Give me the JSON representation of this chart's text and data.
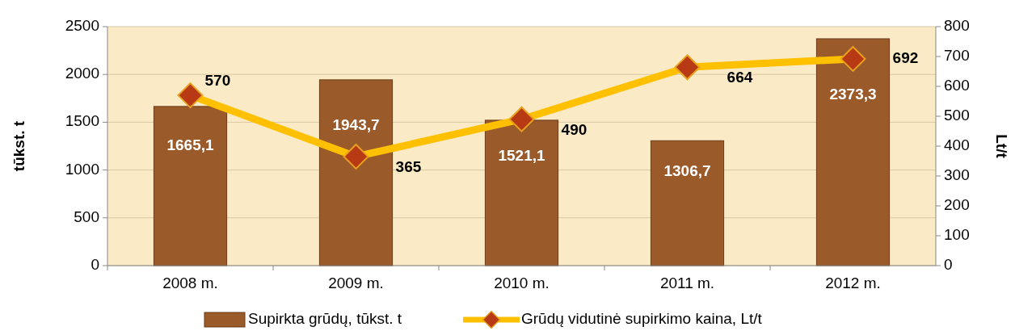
{
  "chart_data": {
    "type": "bar",
    "categories": [
      "2008 m.",
      "2009 m.",
      "2010 m.",
      "2011 m.",
      "2012 m."
    ],
    "series": [
      {
        "name": "Supirkta grūdų, tūkst. t",
        "color": "#9a5a2a",
        "values": [
          1665.1,
          1943.7,
          1521.1,
          1306.7,
          2373.3
        ],
        "value_labels": [
          "1665,1",
          "1943,7",
          "1521,1",
          "1306,7",
          "2373,3"
        ]
      },
      {
        "name": "Grūdų vidutinė supirkimo kaina, Lt/t",
        "type": "line",
        "axis": "y2",
        "color": "#ffc000",
        "marker": "diamond",
        "values": [
          570,
          365,
          490,
          664,
          692
        ],
        "value_labels": [
          "570",
          "365",
          "490",
          "664",
          "692"
        ]
      }
    ],
    "ylabel": "tūkst. t",
    "y2label": "Lt/t",
    "ylim": [
      0,
      2500
    ],
    "yticks": [
      0,
      500,
      1000,
      1500,
      2000,
      2500
    ],
    "y2lim": [
      0,
      800
    ],
    "y2ticks": [
      0,
      100,
      200,
      300,
      400,
      500,
      600,
      700,
      800
    ],
    "grid": "y",
    "legend": "bottom"
  }
}
